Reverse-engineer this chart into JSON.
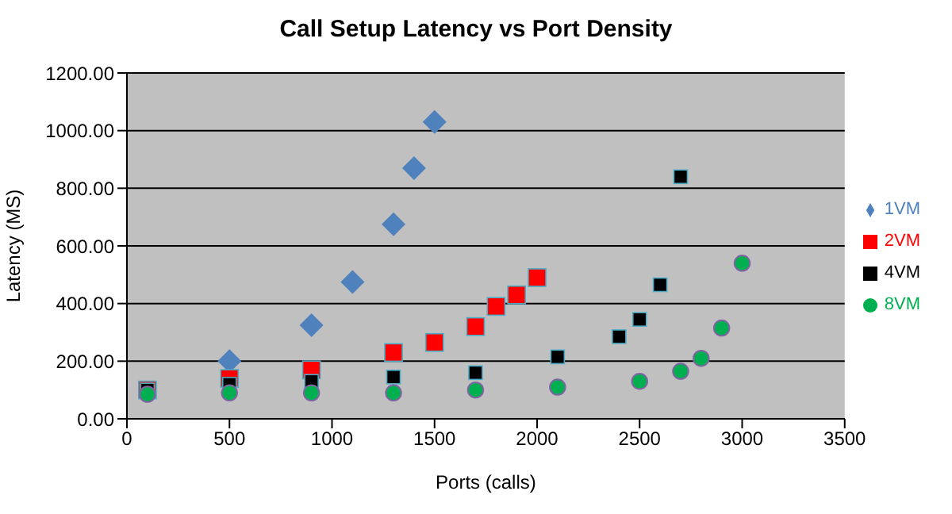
{
  "chart_data": {
    "type": "scatter",
    "title": "Call Setup Latency vs Port Density",
    "xlabel": "Ports (calls)",
    "ylabel": "Latency (MS)",
    "xlim": [
      0,
      3500
    ],
    "xticks": [
      0,
      500,
      1000,
      1500,
      2000,
      2500,
      3000,
      3500
    ],
    "ylim": [
      0,
      1200
    ],
    "yticks": [
      {
        "value": 0,
        "label": "0.00"
      },
      {
        "value": 200,
        "label": "200.00"
      },
      {
        "value": 400,
        "label": "400.00"
      },
      {
        "value": 600,
        "label": "600.00"
      },
      {
        "value": 800,
        "label": "800.00"
      },
      {
        "value": 1000,
        "label": "1000.00"
      },
      {
        "value": 1200,
        "label": "1200.00"
      }
    ],
    "grid": "y",
    "legend": "right",
    "series": [
      {
        "name": "1VM",
        "color": "#4f81bd",
        "marker": "diamond",
        "x": [
          500,
          900,
          1100,
          1300,
          1400,
          1500
        ],
        "values": [
          200,
          325,
          475,
          675,
          870,
          1030
        ]
      },
      {
        "name": "2VM",
        "color": "#ff0000",
        "marker": "square",
        "x": [
          100,
          500,
          900,
          1300,
          1500,
          1700,
          1800,
          1900,
          2000
        ],
        "values": [
          100,
          140,
          170,
          230,
          265,
          320,
          390,
          430,
          490
        ]
      },
      {
        "name": "4VM",
        "color": "#000000",
        "marker": "square",
        "x": [
          100,
          500,
          900,
          1300,
          1700,
          2100,
          2400,
          2500,
          2600,
          2700
        ],
        "values": [
          100,
          120,
          130,
          145,
          160,
          215,
          285,
          345,
          465,
          840
        ]
      },
      {
        "name": "8VM",
        "color": "#00b050",
        "marker": "circle",
        "x": [
          100,
          500,
          900,
          1300,
          1700,
          2100,
          2500,
          2700,
          2800,
          2900,
          3000
        ],
        "values": [
          85,
          90,
          90,
          90,
          100,
          110,
          130,
          165,
          210,
          315,
          540
        ]
      }
    ]
  }
}
